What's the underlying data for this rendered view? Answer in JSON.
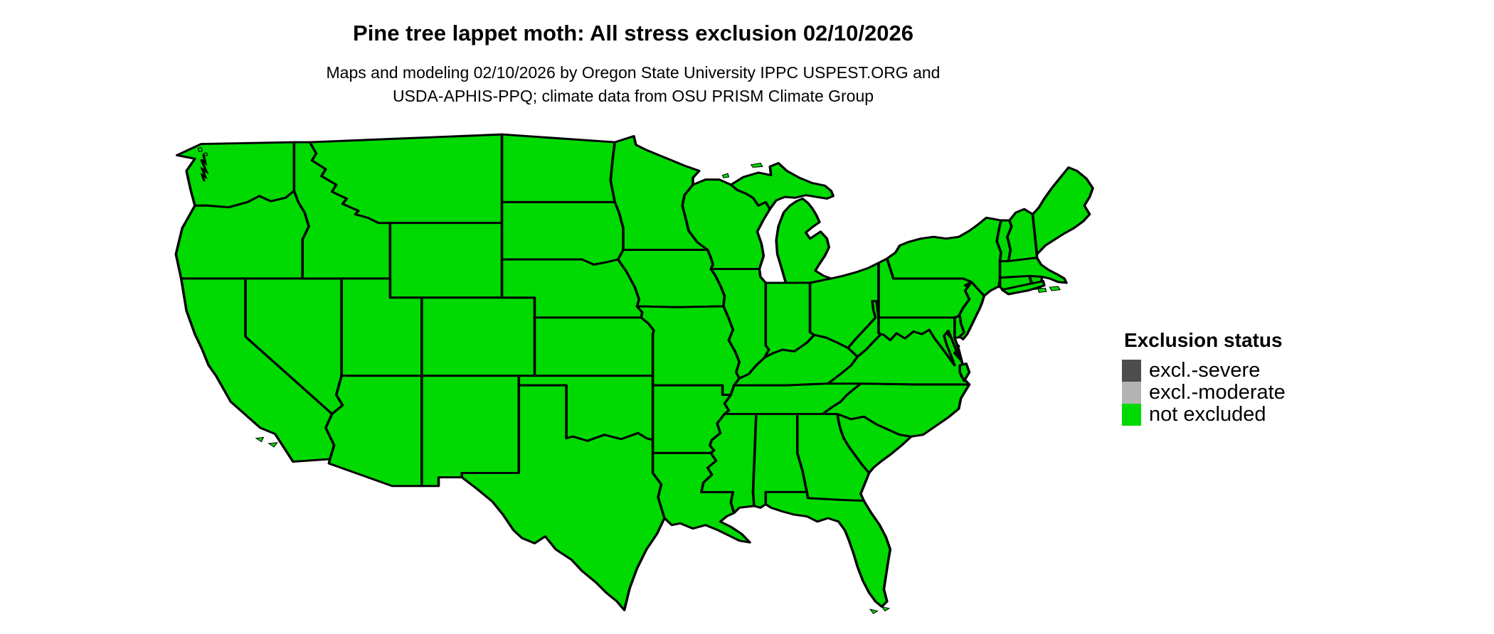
{
  "title": "Pine tree lappet moth: All stress exclusion 02/10/2026",
  "subtitle_line1": "Maps and modeling 02/10/2026 by Oregon State University IPPC USPEST.ORG and",
  "subtitle_line2": "USDA-APHIS-PPQ; climate data from OSU PRISM Climate Group",
  "legend": {
    "title": "Exclusion status",
    "entries": [
      {
        "label": "excl.-severe",
        "color": "#4d4d4d"
      },
      {
        "label": "excl.-moderate",
        "color": "#b3b3b3"
      },
      {
        "label": "not excluded",
        "color": "#00da00"
      }
    ]
  },
  "map": {
    "region": "contiguous United States with state boundaries",
    "all_states_status": "not excluded",
    "fill_color": "#00da00",
    "border_color": "#000000",
    "background_color": "#ffffff"
  }
}
